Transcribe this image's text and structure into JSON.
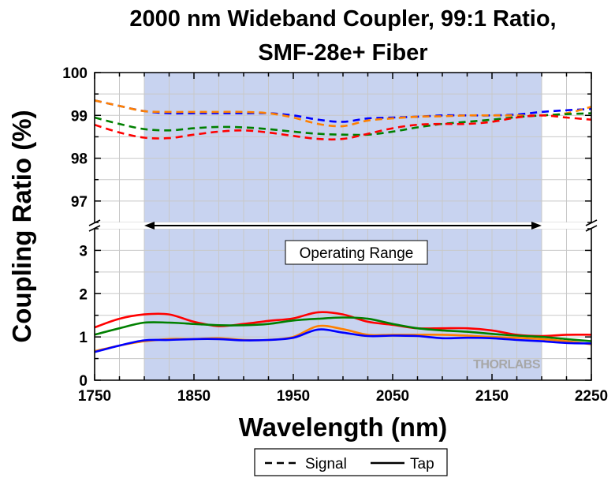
{
  "chart_data": {
    "type": "line",
    "title_lines": [
      "2000 nm Wideband Coupler, 99:1 Ratio,",
      "SMF-28e+ Fiber"
    ],
    "xlabel": "Wavelength (nm)",
    "ylabel": "Coupling Ratio (%)",
    "xlim": [
      1750,
      2250
    ],
    "x_ticks": [
      "1750",
      "1850",
      "1950",
      "2050",
      "2150",
      "2250"
    ],
    "y_upper_range": [
      96.5,
      100
    ],
    "y_upper_ticks": [
      "97",
      "98",
      "99",
      "100"
    ],
    "y_lower_range": [
      0,
      3.5
    ],
    "y_lower_ticks": [
      "0",
      "1",
      "2",
      "3"
    ],
    "axis_break": "between 3.5 and 96.5",
    "grid": true,
    "shaded_region": [
      1800,
      2200
    ],
    "annotation": "Operating Range",
    "legend": {
      "position": "bottom-center",
      "signal_label": "Signal",
      "tap_label": "Tap"
    },
    "watermark": "THORLABS",
    "x": [
      1750,
      1775,
      1800,
      1825,
      1850,
      1875,
      1900,
      1925,
      1950,
      1975,
      2000,
      2025,
      2050,
      2075,
      2100,
      2125,
      2150,
      2175,
      2200,
      2225,
      2250
    ],
    "series": [
      {
        "color": "#0000ff",
        "style": "dashed",
        "values": [
          99.35,
          99.22,
          99.1,
          99.05,
          99.05,
          99.05,
          99.05,
          99.05,
          99.0,
          98.9,
          98.85,
          98.93,
          98.95,
          98.97,
          99.0,
          99.0,
          99.0,
          99.02,
          99.08,
          99.12,
          99.15
        ]
      },
      {
        "color": "#ff8000",
        "style": "dashed",
        "values": [
          99.35,
          99.22,
          99.1,
          99.08,
          99.08,
          99.08,
          99.08,
          99.05,
          98.95,
          98.8,
          98.75,
          98.88,
          98.93,
          98.97,
          98.98,
          99.0,
          99.0,
          99.0,
          99.0,
          99.05,
          99.2
        ]
      },
      {
        "color": "#008000",
        "style": "dashed",
        "values": [
          98.95,
          98.8,
          98.68,
          98.65,
          98.7,
          98.73,
          98.72,
          98.68,
          98.62,
          98.57,
          98.55,
          98.55,
          98.62,
          98.72,
          98.8,
          98.85,
          98.9,
          98.96,
          99.0,
          99.03,
          99.05
        ]
      },
      {
        "color": "#ff0000",
        "style": "dashed",
        "values": [
          98.78,
          98.6,
          98.48,
          98.47,
          98.55,
          98.62,
          98.65,
          98.6,
          98.52,
          98.45,
          98.45,
          98.57,
          98.7,
          98.78,
          98.8,
          98.8,
          98.85,
          98.95,
          99.0,
          98.95,
          98.9
        ]
      },
      {
        "color": "#ff0000",
        "style": "solid",
        "values": [
          1.22,
          1.42,
          1.52,
          1.52,
          1.35,
          1.25,
          1.3,
          1.37,
          1.43,
          1.57,
          1.52,
          1.35,
          1.28,
          1.2,
          1.2,
          1.2,
          1.15,
          1.05,
          1.02,
          1.05,
          1.05
        ]
      },
      {
        "color": "#008000",
        "style": "solid",
        "values": [
          1.05,
          1.2,
          1.33,
          1.33,
          1.3,
          1.27,
          1.27,
          1.3,
          1.38,
          1.42,
          1.45,
          1.42,
          1.3,
          1.2,
          1.15,
          1.12,
          1.07,
          1.03,
          1.0,
          0.95,
          0.9
        ]
      },
      {
        "color": "#ff8000",
        "style": "solid",
        "values": [
          0.67,
          0.8,
          0.9,
          0.95,
          0.95,
          0.97,
          0.93,
          0.93,
          1.0,
          1.25,
          1.18,
          1.05,
          1.05,
          1.05,
          1.05,
          1.03,
          1.0,
          0.98,
          0.95,
          0.9,
          0.83
        ]
      },
      {
        "color": "#0000ff",
        "style": "solid",
        "values": [
          0.65,
          0.8,
          0.92,
          0.93,
          0.95,
          0.95,
          0.92,
          0.93,
          0.98,
          1.17,
          1.1,
          1.02,
          1.03,
          1.02,
          0.97,
          0.98,
          0.97,
          0.93,
          0.9,
          0.86,
          0.85
        ]
      }
    ]
  }
}
